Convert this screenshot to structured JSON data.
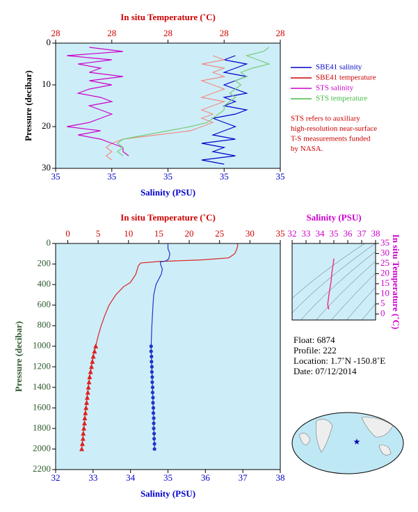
{
  "chart_data": [
    {
      "type": "line",
      "background": "#cdeef8",
      "invert_y": true,
      "x2label": "In situ Temperature (˚C)",
      "xlabel": "Salinity (PSU)",
      "ylabel": "Pressure (decibar)",
      "x2color": "#cc0000",
      "xcolor": "#0000cc",
      "ycolor": "#000000",
      "xlim": [
        34.9,
        35.1
      ],
      "xticks": [
        {
          "value": 34.9,
          "label": "35"
        },
        {
          "value": 34.95,
          "label": "35"
        },
        {
          "value": 35.0,
          "label": "35"
        },
        {
          "value": 35.05,
          "label": "35"
        },
        {
          "value": 35.1,
          "label": "35"
        }
      ],
      "x2lim": [
        27.9,
        28.1
      ],
      "x2ticks": [
        {
          "value": 27.9,
          "label": "28"
        },
        {
          "value": 27.95,
          "label": "28"
        },
        {
          "value": 28.0,
          "label": "28"
        },
        {
          "value": 28.05,
          "label": "28"
        },
        {
          "value": 28.1,
          "label": "28"
        }
      ],
      "ylim": [
        0,
        30
      ],
      "yticks": [
        0,
        10,
        20,
        30
      ],
      "legend": "right",
      "series": [
        {
          "name": "SBE41 salinity",
          "color": "#0000cc",
          "pressure": [
            3,
            4,
            5,
            6,
            7,
            8,
            9,
            10,
            11,
            12,
            13,
            14,
            15,
            16,
            17,
            18,
            19,
            20,
            21,
            22,
            23,
            24,
            25,
            26,
            27,
            28,
            29
          ],
          "values": [
            35.06,
            35.05,
            35.07,
            35.06,
            35.05,
            35.07,
            35.06,
            35.05,
            35.06,
            35.07,
            35.05,
            35.06,
            35.05,
            35.07,
            35.06,
            35.04,
            35.05,
            35.06,
            35.05,
            35.04,
            35.06,
            35.03,
            35.05,
            35.04,
            35.06,
            35.03,
            35.05
          ]
        },
        {
          "name": "SBE41 temperature",
          "color": "#cc0000",
          "line_color": "#f08c84",
          "axis": "x2",
          "pressure": [
            3,
            4,
            5,
            6,
            7,
            8,
            9,
            10,
            11,
            12,
            13,
            14,
            15,
            16,
            17,
            18,
            19,
            20,
            21,
            22,
            23,
            24,
            25,
            26,
            27,
            28
          ],
          "values": [
            28.04,
            28.05,
            28.03,
            28.05,
            28.04,
            28.05,
            28.03,
            28.04,
            28.05,
            28.04,
            28.03,
            28.05,
            28.04,
            28.03,
            28.04,
            28.03,
            28.04,
            28.03,
            28.02,
            27.99,
            27.96,
            27.95,
            27.945,
            27.95,
            27.945,
            27.95
          ]
        },
        {
          "name": "STS salinity",
          "color": "#cc00cc",
          "pressure": [
            1,
            2,
            3,
            4,
            5,
            6,
            7,
            8,
            9,
            10,
            11,
            12,
            13,
            14,
            15,
            16,
            17,
            18,
            19,
            20,
            21,
            22,
            23,
            24,
            25,
            26,
            27
          ],
          "values": [
            34.93,
            34.96,
            34.91,
            34.95,
            34.92,
            34.94,
            34.93,
            34.96,
            34.93,
            34.95,
            34.93,
            34.92,
            34.94,
            34.95,
            34.93,
            34.94,
            34.95,
            34.94,
            34.93,
            34.91,
            34.94,
            34.92,
            34.94,
            34.95,
            34.96,
            34.96,
            34.965
          ]
        },
        {
          "name": "STS temperature",
          "color": "#44bb44",
          "line_color": "#77cc77",
          "axis": "x2",
          "pressure": [
            1,
            2,
            3,
            4,
            5,
            6,
            7,
            8,
            9,
            10,
            11,
            12,
            13,
            14,
            15,
            16,
            17,
            18,
            19,
            20,
            21,
            22,
            23,
            24,
            25,
            26,
            27
          ],
          "values": [
            28.09,
            28.085,
            28.07,
            28.08,
            28.09,
            28.075,
            28.065,
            28.07,
            28.06,
            28.065,
            28.06,
            28.055,
            28.06,
            28.055,
            28.05,
            28.05,
            28.045,
            28.04,
            28.035,
            28.02,
            28.0,
            27.98,
            27.96,
            27.955,
            27.96,
            27.955,
            27.96
          ]
        }
      ],
      "note": [
        "STS refers to auxiliary",
        "high-resolution near-surface",
        "T-S measurements funded",
        "by NASA."
      ]
    },
    {
      "type": "line",
      "background": "#cdeef8",
      "invert_y": true,
      "x2label": "In situ Temperature (˚C)",
      "xlabel": "Salinity (PSU)",
      "ylabel": "Pressure (decibar)",
      "x2color": "#cc0000",
      "xcolor": "#0000cc",
      "ycolor": "#2e5a2e",
      "xlim": [
        32,
        38
      ],
      "xticks": [
        32,
        33,
        34,
        35,
        36,
        37,
        38
      ],
      "x2lim": [
        -2,
        35
      ],
      "x2ticks": [
        0,
        5,
        10,
        15,
        20,
        25,
        30,
        35
      ],
      "ylim": [
        0,
        2200
      ],
      "yticks": [
        0,
        200,
        400,
        600,
        800,
        1000,
        1200,
        1400,
        1600,
        1800,
        2000,
        2200
      ],
      "series": [
        {
          "color": "#dd2222",
          "axis": "x2",
          "marker": null,
          "pressure": [
            0,
            20,
            60,
            100,
            140,
            160,
            175,
            190,
            220,
            300,
            380,
            420,
            500,
            600,
            700,
            800,
            900,
            1000
          ],
          "values": [
            27.9,
            28.0,
            27.8,
            27.5,
            26.5,
            22,
            15,
            12,
            11.6,
            11.2,
            10.3,
            9.2,
            7.9,
            6.8,
            6.1,
            5.5,
            5.0,
            4.6
          ]
        },
        {
          "color": "#dd2222",
          "axis": "x2",
          "marker": "triangle",
          "pressure": [
            1000,
            1050,
            1100,
            1150,
            1200,
            1250,
            1300,
            1350,
            1400,
            1450,
            1500,
            1550,
            1600,
            1650,
            1700,
            1750,
            1800,
            1850,
            1900,
            1950,
            2000
          ],
          "values": [
            4.6,
            4.4,
            4.2,
            4.05,
            3.9,
            3.75,
            3.6,
            3.5,
            3.4,
            3.3,
            3.2,
            3.1,
            3.0,
            2.9,
            2.8,
            2.75,
            2.65,
            2.55,
            2.5,
            2.4,
            2.3
          ]
        },
        {
          "color": "#2233cc",
          "marker": null,
          "pressure": [
            0,
            50,
            100,
            150,
            170,
            180,
            200,
            250,
            300,
            400,
            500,
            600,
            800,
            1000
          ],
          "values": [
            35.0,
            35.0,
            35.05,
            35.02,
            34.95,
            34.8,
            34.8,
            34.85,
            34.82,
            34.68,
            34.62,
            34.6,
            34.57,
            34.55
          ]
        },
        {
          "color": "#2233cc",
          "marker": "circle",
          "pressure": [
            1000,
            1050,
            1100,
            1150,
            1200,
            1250,
            1300,
            1350,
            1400,
            1450,
            1500,
            1550,
            1600,
            1650,
            1700,
            1750,
            1800,
            1850,
            1900,
            1950,
            2000
          ],
          "values": [
            34.55,
            34.55,
            34.56,
            34.56,
            34.57,
            34.57,
            34.58,
            34.58,
            34.59,
            34.59,
            34.6,
            34.6,
            34.61,
            34.61,
            34.62,
            34.62,
            34.62,
            34.63,
            34.63,
            34.64,
            34.64
          ]
        }
      ]
    },
    {
      "type": "line",
      "background": "#cdeef8",
      "x_axis_side": "top",
      "y_axis_side": "right",
      "xlabel": "Salinity (PSU)",
      "ylabel": "In situ Temperature (˚C)",
      "xcolor": "#cc00cc",
      "ycolor": "#cc00cc",
      "xlim": [
        32,
        38
      ],
      "xticks": [
        32,
        33,
        34,
        35,
        36,
        37,
        38
      ],
      "ylim": [
        -3,
        35
      ],
      "yticks": [
        0,
        5,
        10,
        15,
        20,
        25,
        30,
        35
      ],
      "color": "#ee3388",
      "x": [
        35.0,
        34.98,
        34.85,
        34.8,
        34.7,
        34.62,
        34.58,
        34.56,
        34.6,
        34.64,
        34.58,
        34.62
      ],
      "values": [
        27.5,
        26,
        20,
        16,
        12,
        8,
        6,
        4.5,
        3,
        2.3,
        4,
        3.5
      ]
    }
  ],
  "info": [
    "Float:  6874",
    "Profile:  222",
    "Location:  1.7˚N  -150.8˚E",
    "Date:  07/12/2014"
  ]
}
